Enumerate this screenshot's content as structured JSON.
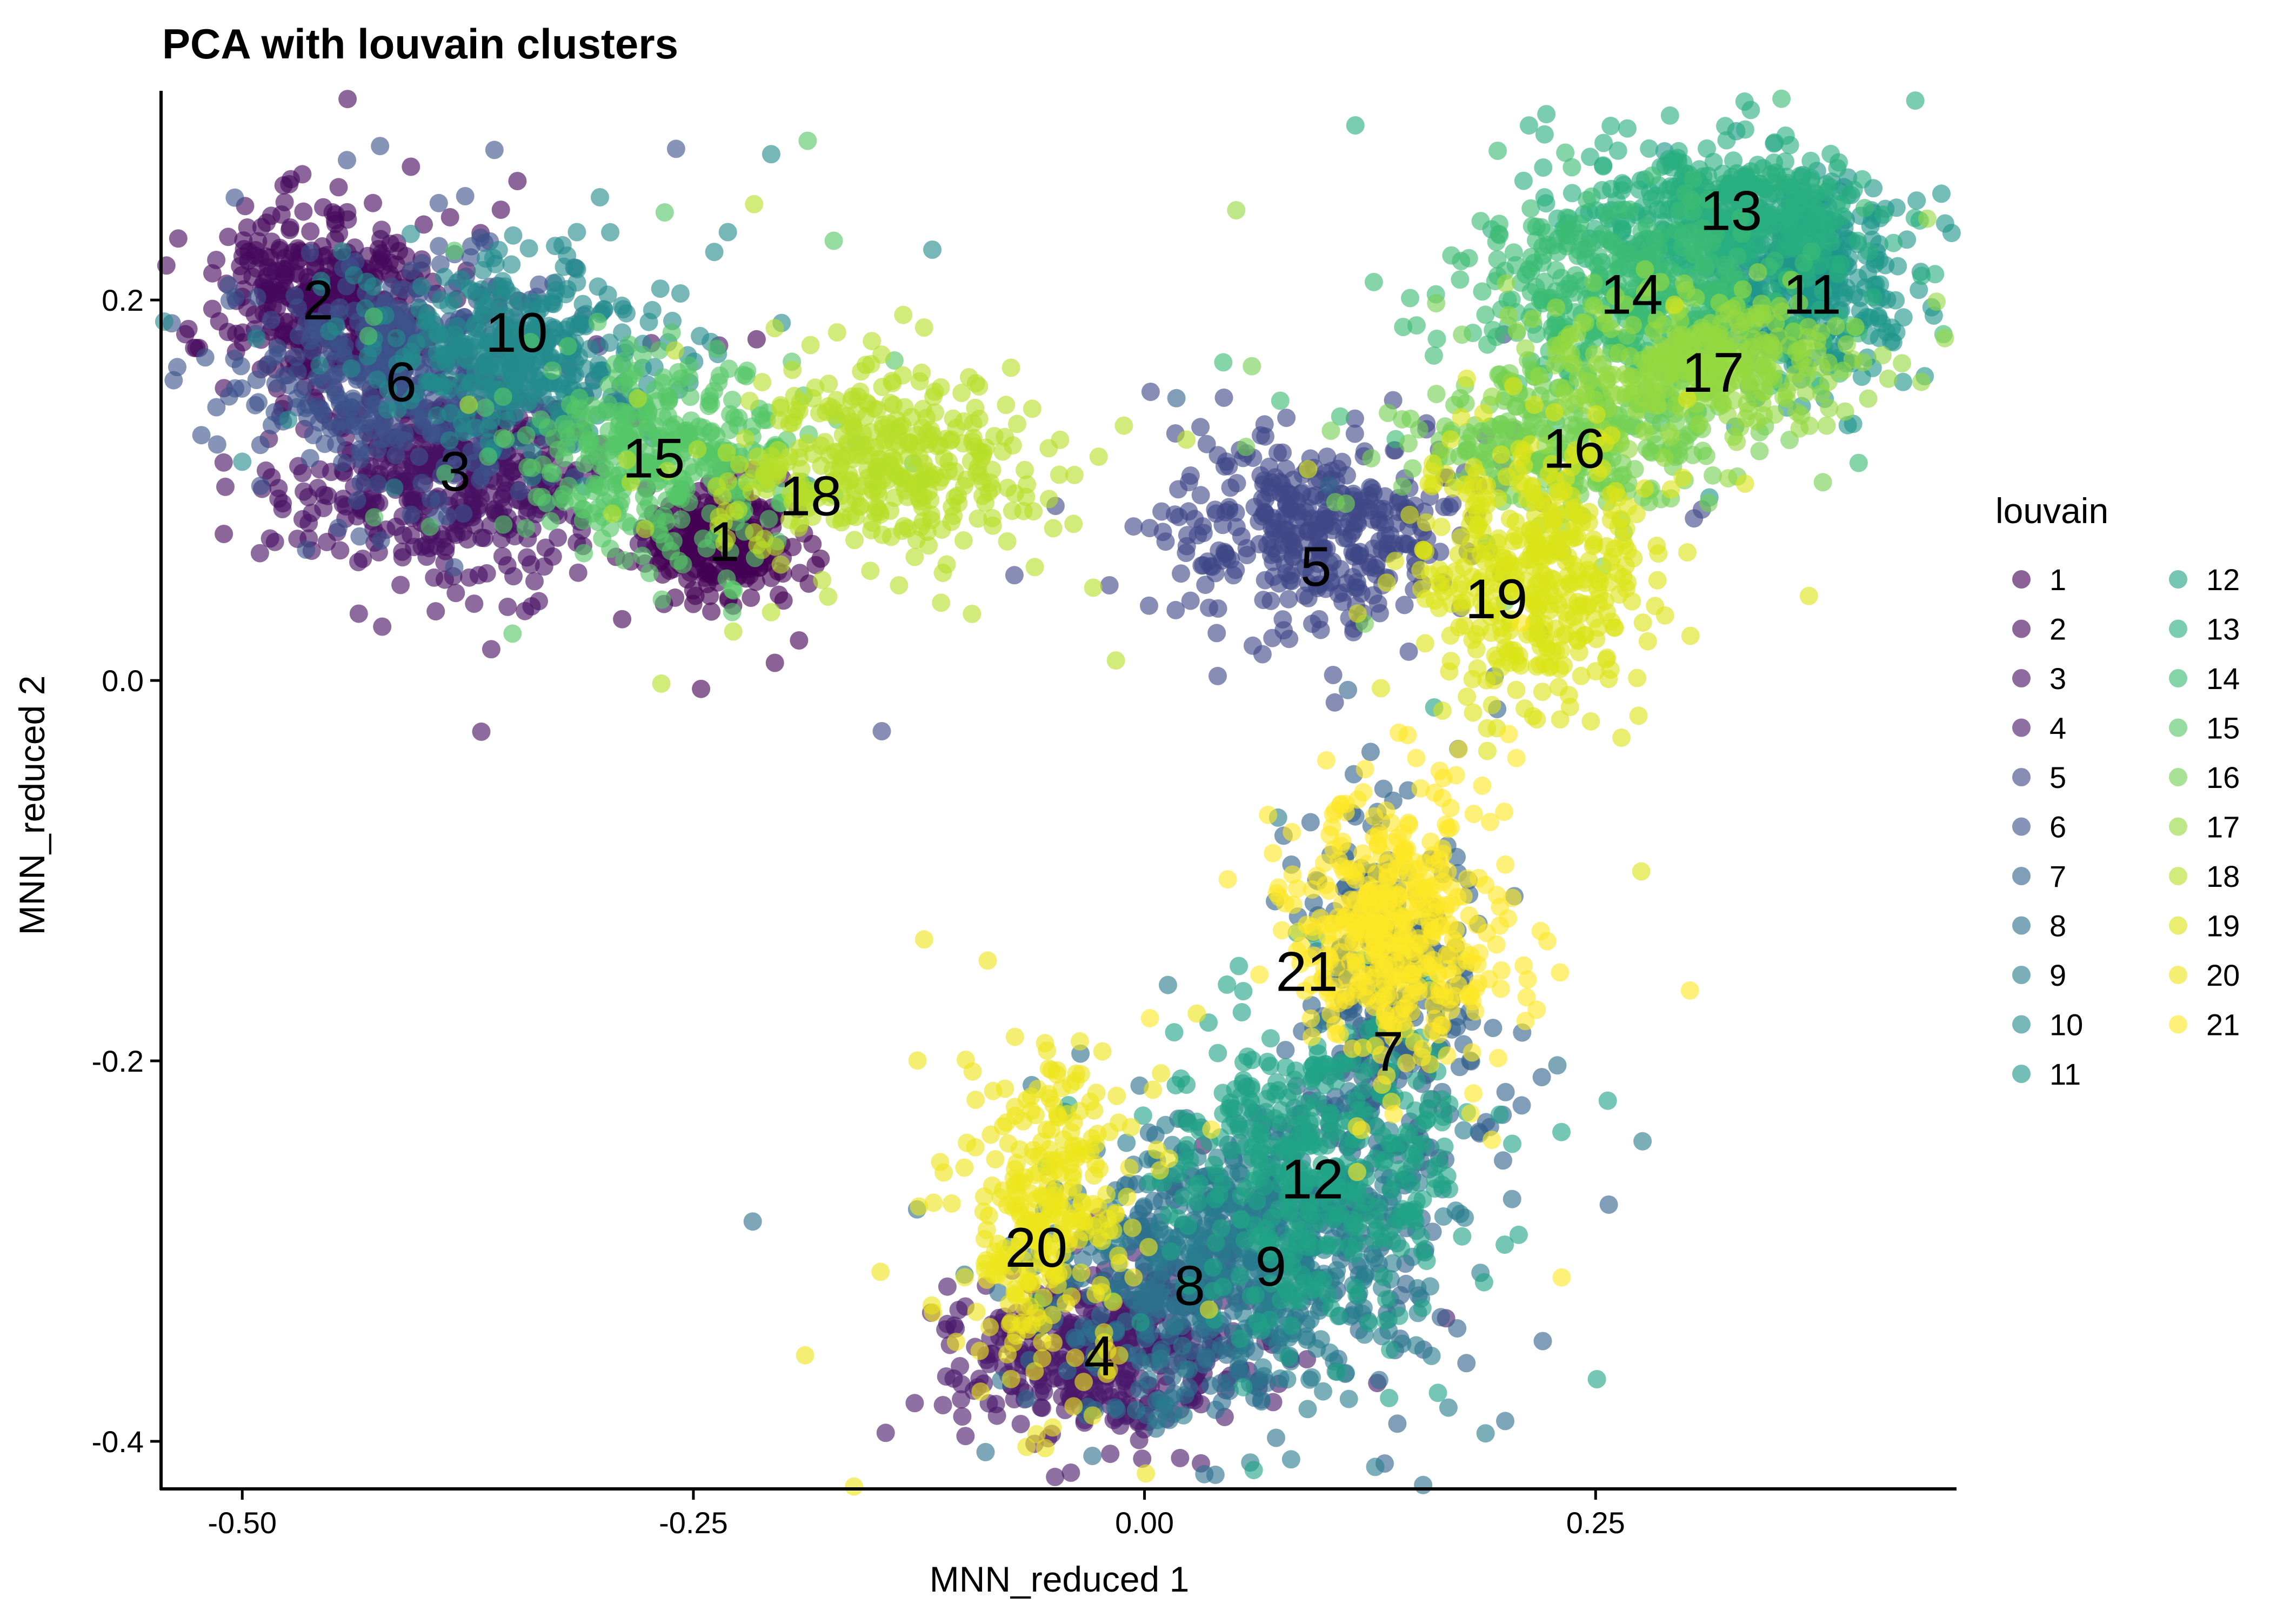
{
  "chart_data": {
    "type": "scatter",
    "title": "PCA with louvain clusters",
    "xlabel": "MNN_reduced 1",
    "ylabel": "MNN_reduced 2",
    "xlim": [
      -0.545,
      0.45
    ],
    "ylim": [
      -0.425,
      0.31
    ],
    "x_ticks": [
      -0.5,
      -0.25,
      0.0,
      0.25
    ],
    "x_tick_labels": [
      "-0.50",
      "-0.25",
      "0.00",
      "0.25"
    ],
    "y_ticks": [
      -0.4,
      -0.2,
      0.0,
      0.2
    ],
    "y_tick_labels": [
      "-0.4",
      "-0.2",
      "0.0",
      "0.2"
    ],
    "grid": false,
    "legend": {
      "title": "louvain",
      "placement": "right",
      "columns": 2
    },
    "series": [
      {
        "name": "1",
        "color": "#440154",
        "center": [
          -0.235,
          0.075
        ],
        "spread": [
          0.02,
          0.015
        ],
        "n": 260
      },
      {
        "name": "2",
        "color": "#46085C",
        "center": [
          -0.455,
          0.2
        ],
        "spread": [
          0.028,
          0.022
        ],
        "n": 380
      },
      {
        "name": "3",
        "color": "#471063",
        "center": [
          -0.385,
          0.11
        ],
        "spread": [
          0.045,
          0.028
        ],
        "n": 480
      },
      {
        "name": "4",
        "color": "#48186A",
        "center": [
          -0.025,
          -0.355
        ],
        "spread": [
          0.04,
          0.022
        ],
        "n": 420
      },
      {
        "name": "5",
        "color": "#3F4788",
        "center": [
          0.095,
          0.08
        ],
        "spread": [
          0.045,
          0.025
        ],
        "n": 380
      },
      {
        "name": "6",
        "color": "#3B528B",
        "center": [
          -0.41,
          0.16
        ],
        "spread": [
          0.045,
          0.03
        ],
        "n": 420
      },
      {
        "name": "7",
        "color": "#33638D",
        "center": [
          0.135,
          -0.185
        ],
        "spread": [
          0.025,
          0.06
        ],
        "n": 360
      },
      {
        "name": "8",
        "color": "#2D708E",
        "center": [
          0.025,
          -0.315
        ],
        "spread": [
          0.04,
          0.035
        ],
        "n": 400
      },
      {
        "name": "9",
        "color": "#287C8E",
        "center": [
          0.075,
          -0.295
        ],
        "spread": [
          0.04,
          0.035
        ],
        "n": 400
      },
      {
        "name": "10",
        "color": "#238A8D",
        "center": [
          -0.345,
          0.175
        ],
        "spread": [
          0.04,
          0.025
        ],
        "n": 380
      },
      {
        "name": "11",
        "color": "#1F968B",
        "center": [
          0.365,
          0.21
        ],
        "spread": [
          0.028,
          0.025
        ],
        "n": 420
      },
      {
        "name": "12",
        "color": "#20A386",
        "center": [
          0.095,
          -0.26
        ],
        "spread": [
          0.04,
          0.04
        ],
        "n": 420
      },
      {
        "name": "13",
        "color": "#29AF7F",
        "center": [
          0.325,
          0.245
        ],
        "spread": [
          0.04,
          0.018
        ],
        "n": 420
      },
      {
        "name": "14",
        "color": "#3CBC75",
        "center": [
          0.265,
          0.2
        ],
        "spread": [
          0.045,
          0.025
        ],
        "n": 420
      },
      {
        "name": "15",
        "color": "#56C667",
        "center": [
          -0.265,
          0.12
        ],
        "spread": [
          0.04,
          0.025
        ],
        "n": 360
      },
      {
        "name": "16",
        "color": "#75D054",
        "center": [
          0.235,
          0.125
        ],
        "spread": [
          0.04,
          0.02
        ],
        "n": 300
      },
      {
        "name": "17",
        "color": "#95D840",
        "center": [
          0.31,
          0.165
        ],
        "spread": [
          0.04,
          0.02
        ],
        "n": 320
      },
      {
        "name": "18",
        "color": "#B8DE29",
        "center": [
          -0.15,
          0.115
        ],
        "spread": [
          0.045,
          0.025
        ],
        "n": 380
      },
      {
        "name": "19",
        "color": "#DCE318",
        "center": [
          0.215,
          0.06
        ],
        "spread": [
          0.03,
          0.035
        ],
        "n": 400
      },
      {
        "name": "20",
        "color": "#EEE51C",
        "center": [
          -0.055,
          -0.28
        ],
        "spread": [
          0.025,
          0.04
        ],
        "n": 300
      },
      {
        "name": "21",
        "color": "#FDE725",
        "center": [
          0.14,
          -0.13
        ],
        "spread": [
          0.03,
          0.035
        ],
        "n": 420
      }
    ],
    "annotations": [
      {
        "text": "1",
        "x": -0.233,
        "y": 0.073
      },
      {
        "text": "2",
        "x": -0.458,
        "y": 0.2
      },
      {
        "text": "3",
        "x": -0.382,
        "y": 0.11
      },
      {
        "text": "4",
        "x": -0.025,
        "y": -0.355
      },
      {
        "text": "5",
        "x": 0.095,
        "y": 0.06
      },
      {
        "text": "6",
        "x": -0.412,
        "y": 0.157
      },
      {
        "text": "7",
        "x": 0.135,
        "y": -0.195
      },
      {
        "text": "8",
        "x": 0.025,
        "y": -0.318
      },
      {
        "text": "9",
        "x": 0.07,
        "y": -0.308
      },
      {
        "text": "10",
        "x": -0.348,
        "y": 0.183
      },
      {
        "text": "11",
        "x": 0.37,
        "y": 0.203
      },
      {
        "text": "12",
        "x": 0.093,
        "y": -0.262
      },
      {
        "text": "13",
        "x": 0.325,
        "y": 0.247
      },
      {
        "text": "14",
        "x": 0.27,
        "y": 0.203
      },
      {
        "text": "15",
        "x": -0.272,
        "y": 0.117
      },
      {
        "text": "16",
        "x": 0.238,
        "y": 0.122
      },
      {
        "text": "17",
        "x": 0.315,
        "y": 0.162
      },
      {
        "text": "18",
        "x": -0.185,
        "y": 0.097
      },
      {
        "text": "19",
        "x": 0.195,
        "y": 0.043
      },
      {
        "text": "20",
        "x": -0.06,
        "y": -0.298
      },
      {
        "text": "21",
        "x": 0.09,
        "y": -0.153
      }
    ]
  }
}
